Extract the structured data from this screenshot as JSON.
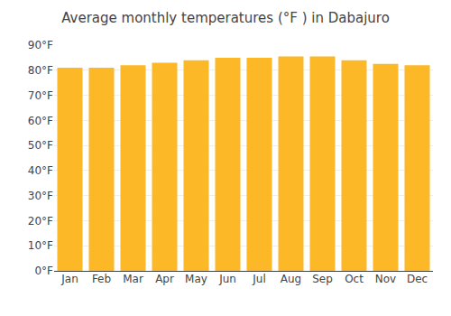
{
  "chart_data": {
    "type": "bar",
    "title": "Average monthly temperatures (°F ) in Dabajuro",
    "categories": [
      "Jan",
      "Feb",
      "Mar",
      "Apr",
      "May",
      "Jun",
      "Jul",
      "Aug",
      "Sep",
      "Oct",
      "Nov",
      "Dec"
    ],
    "values": [
      81,
      81,
      82,
      83,
      84,
      85,
      85,
      85.5,
      85.5,
      84,
      82.5,
      82
    ],
    "color": "#FDB827",
    "ylim": [
      0,
      90
    ],
    "yticks": [
      {
        "value": 0,
        "label": "0°F"
      },
      {
        "value": 10,
        "label": "10°F"
      },
      {
        "value": 20,
        "label": "20°F"
      },
      {
        "value": 30,
        "label": "30°F"
      },
      {
        "value": 40,
        "label": "40°F"
      },
      {
        "value": 50,
        "label": "50°F"
      },
      {
        "value": 60,
        "label": "60°F"
      },
      {
        "value": 70,
        "label": "70°F"
      },
      {
        "value": 80,
        "label": "80°F"
      },
      {
        "value": 90,
        "label": "90°F"
      }
    ],
    "grid": true
  }
}
